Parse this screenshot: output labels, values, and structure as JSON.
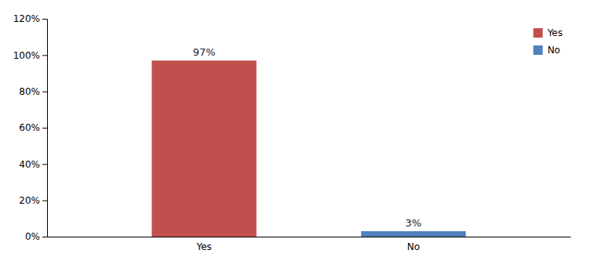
{
  "chart_data": {
    "type": "bar",
    "categories": [
      "Yes",
      "No"
    ],
    "values": [
      0.97,
      0.03
    ],
    "value_labels": [
      "97%",
      "3%"
    ],
    "colors": [
      "#c0504d",
      "#4f81bd"
    ],
    "ylim": [
      0,
      1.2
    ],
    "yticks": [
      {
        "value": 0,
        "label": "0%"
      },
      {
        "value": 0.2,
        "label": "20%"
      },
      {
        "value": 0.4,
        "label": "40%"
      },
      {
        "value": 0.6,
        "label": "60%"
      },
      {
        "value": 0.8,
        "label": "80%"
      },
      {
        "value": 1.0,
        "label": "100%"
      },
      {
        "value": 1.2,
        "label": "120%"
      }
    ],
    "grid": false,
    "legend": "upper right",
    "data_labels": true
  }
}
